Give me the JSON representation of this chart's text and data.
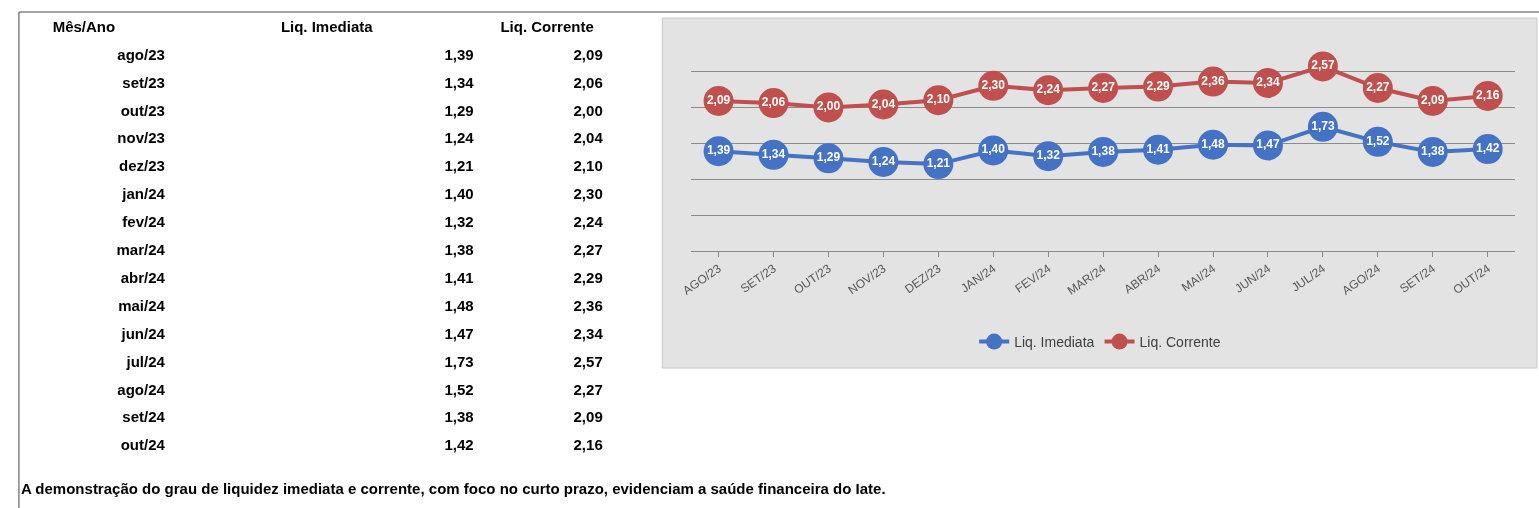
{
  "chart_data": [
    {
      "type": "other",
      "xlabel": "Mês/Ano",
      "categories": [
        "ago/23",
        "set/23",
        "out/23",
        "nov/23",
        "dez/23",
        "jan/24",
        "fev/24",
        "mar/24",
        "abr/24",
        "mai/24",
        "jun/24",
        "jul/24",
        "ago/24",
        "set/24",
        "out/24"
      ],
      "series": [
        {
          "name": "Liq. Imediata",
          "values": [
            1.39,
            1.34,
            1.29,
            1.24,
            1.21,
            1.4,
            1.32,
            1.38,
            1.41,
            1.48,
            1.47,
            1.73,
            1.52,
            1.38,
            1.42
          ],
          "value_labels": [
            "1,39",
            "1,34",
            "1,29",
            "1,24",
            "1,21",
            "1,40",
            "1,32",
            "1,38",
            "1,41",
            "1,48",
            "1,47",
            "1,73",
            "1,52",
            "1,38",
            "1,42"
          ]
        },
        {
          "name": "Liq. Corrente",
          "values": [
            2.09,
            2.06,
            2.0,
            2.04,
            2.1,
            2.3,
            2.24,
            2.27,
            2.29,
            2.36,
            2.34,
            2.57,
            2.27,
            2.09,
            2.16
          ],
          "value_labels": [
            "2,09",
            "2,06",
            "2,00",
            "2,04",
            "2,10",
            "2,30",
            "2,24",
            "2,27",
            "2,29",
            "2,36",
            "2,34",
            "2,57",
            "2,27",
            "2,09",
            "2,16"
          ]
        }
      ],
      "annotations": [
        "A demonstração do grau de liquidez imediata e corrente, com foco no curto prazo, evidenciam a saúde financeira do Iate."
      ]
    },
    {
      "type": "line",
      "categories": [
        "AGO/23",
        "SET/23",
        "OUT/23",
        "NOV/23",
        "DEZ/23",
        "JAN/24",
        "FEV/24",
        "MAR/24",
        "ABR/24",
        "MAI/24",
        "JUN/24",
        "JUL/24",
        "AGO/24",
        "SET/24",
        "OUT/24"
      ],
      "series": [
        {
          "name": "Liq. Imediata",
          "color": "#4472c4",
          "values": [
            1.39,
            1.34,
            1.29,
            1.24,
            1.21,
            1.4,
            1.32,
            1.38,
            1.41,
            1.48,
            1.47,
            1.73,
            1.52,
            1.38,
            1.42
          ],
          "value_labels": [
            "1,39",
            "1,34",
            "1,29",
            "1,24",
            "1,21",
            "1,40",
            "1,32",
            "1,38",
            "1,41",
            "1,48",
            "1,47",
            "1,73",
            "1,52",
            "1,38",
            "1,42"
          ]
        },
        {
          "name": "Liq. Corrente",
          "color": "#c0504d",
          "values": [
            2.09,
            2.06,
            2.0,
            2.04,
            2.1,
            2.3,
            2.24,
            2.27,
            2.29,
            2.36,
            2.34,
            2.57,
            2.27,
            2.09,
            2.16
          ],
          "value_labels": [
            "2,09",
            "2,06",
            "2,00",
            "2,04",
            "2,10",
            "2,30",
            "2,24",
            "2,27",
            "2,29",
            "2,36",
            "2,34",
            "2,57",
            "2,27",
            "2,09",
            "2,16"
          ]
        }
      ],
      "yticks": [
        {
          "value": 0,
          "label": null
        },
        {
          "value": 0.5,
          "label": null
        },
        {
          "value": 1,
          "label": null
        },
        {
          "value": 1.5,
          "label": null
        },
        {
          "value": 2,
          "label": null
        },
        {
          "value": 2.5,
          "label": null
        }
      ],
      "grid": "y",
      "tick_labels": "x",
      "legend": "bottom",
      "marker": "circle",
      "line_style": "solid"
    }
  ]
}
